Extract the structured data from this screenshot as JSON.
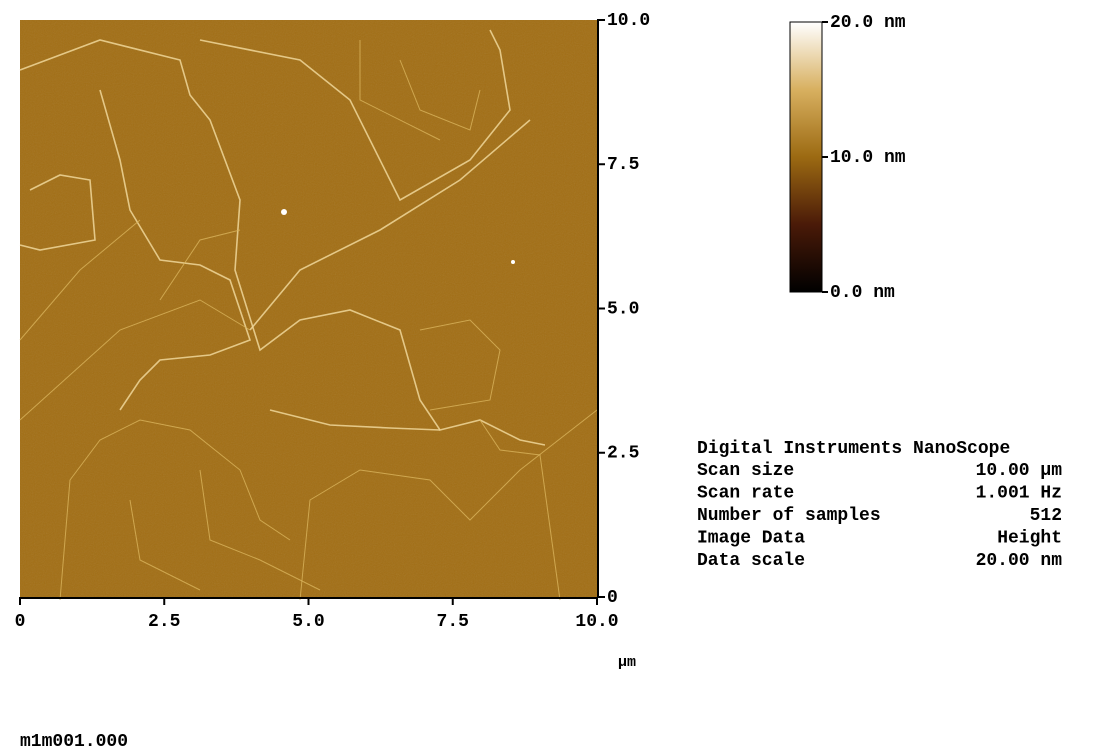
{
  "chart_data": {
    "type": "image",
    "xlim": [
      0,
      10
    ],
    "ylim": [
      0,
      10
    ],
    "xticks": [
      0,
      2.5,
      {
        "value": 5,
        "label": "5.0"
      },
      7.5,
      {
        "value": 10,
        "label": "10.0"
      }
    ],
    "yticks": [
      0,
      2.5,
      {
        "value": 5,
        "label": "5.0"
      },
      7.5,
      {
        "value": 10,
        "label": "10.0"
      }
    ],
    "xlabel": "µm",
    "colorbar": {
      "lim": [
        0,
        20
      ],
      "ticks": [
        {
          "value": 0,
          "label": "0.0 nm"
        },
        {
          "value": 10,
          "label": "10.0 nm"
        },
        {
          "value": 20,
          "label": "20.0 nm"
        }
      ]
    }
  },
  "info": {
    "title": "Digital Instruments NanoScope",
    "rows": [
      [
        "Scan size",
        "10.00 µm"
      ],
      [
        "Scan rate",
        "1.001 Hz"
      ],
      [
        "Number of samples",
        "512"
      ],
      [
        "Image Data",
        "Height"
      ],
      [
        "Data scale",
        "20.00 nm"
      ]
    ]
  },
  "filename": "m1m001.000"
}
